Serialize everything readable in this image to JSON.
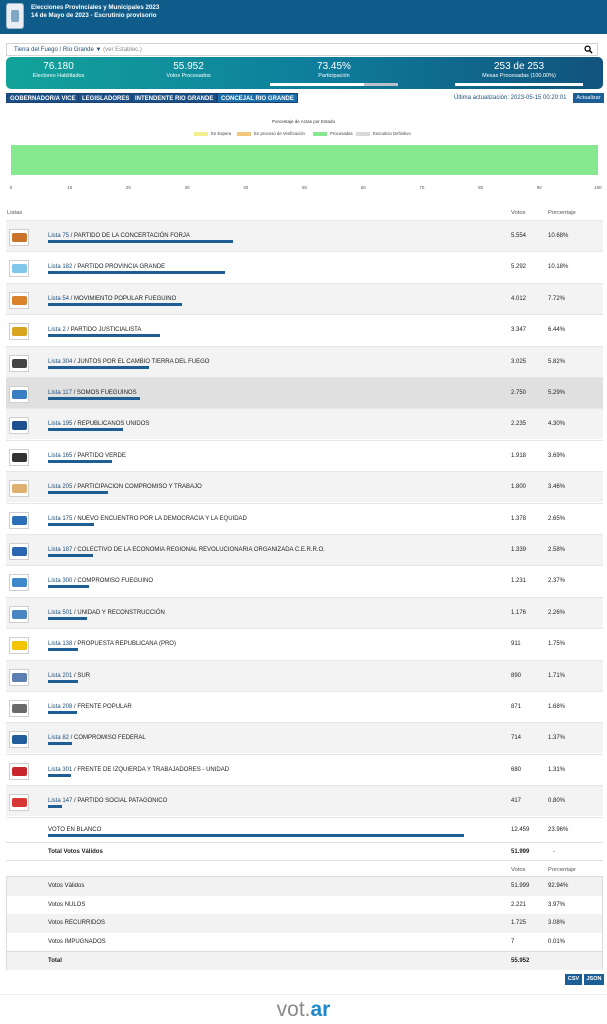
{
  "header": {
    "title": "Elecciones Provinciales y Municipales 2023",
    "subtitle": "14 de Mayo de 2023 - Escrutinio provisorio",
    "logo_icon": "province-shield-icon"
  },
  "location": {
    "province": "Tierra del Fuego",
    "separator": "/",
    "municipality": "Río Grande",
    "dropdown_glyph": "▼",
    "hint": "(ver Establec.)",
    "search_icon": "search-icon"
  },
  "stats": {
    "electores": {
      "value": "76.180",
      "label": "Electores Habilitados"
    },
    "votos": {
      "value": "55.952",
      "label": "Votos Procesados"
    },
    "participacion": {
      "value": "73.45%",
      "label": "Participación",
      "fill": 0.7345
    },
    "mesas": {
      "value": "253 de 253",
      "label": "Mesas Procesadas (100.00%)",
      "fill": 1.0
    }
  },
  "tabs": [
    "GOBERNADOR/A VICE",
    "LEGISLADORES",
    "INTENDENTE RIO GRANDE",
    "CONCEJAL RIO GRANDE"
  ],
  "update": {
    "label": "Última actualización: 2023-05-15 00:20:01",
    "button": "Actualizar"
  },
  "chart_data": {
    "type": "bar",
    "title": "Porcentaje de Actas por Estado",
    "orientation": "horizontal-stacked",
    "series": [
      {
        "name": "En Espera",
        "value": 0,
        "color": "#f4ef8c"
      },
      {
        "name": "En proceso de Verificación",
        "value": 0,
        "color": "#f2c77b"
      },
      {
        "name": "Procesadas",
        "value": 100,
        "color": "#86e98f"
      },
      {
        "name": "Escrutinio Definitivo",
        "value": 0,
        "color": "#d8d8d8"
      }
    ],
    "xlim": [
      0,
      100
    ],
    "xticks": [
      "0",
      "10",
      "20",
      "30",
      "40",
      "50",
      "60",
      "70",
      "80",
      "90",
      "100"
    ]
  },
  "results": {
    "headers": {
      "listas": "Listas",
      "votos": "Votos",
      "porcentaje": "Porcentaje"
    },
    "rows": [
      {
        "lista": "Lista 75",
        "name": "PARTIDO DE LA CONCERTACIÓN FORJA",
        "votes": "5.554",
        "pct": "10.68%",
        "share": 10.68,
        "icon": "forja-logo-icon",
        "color": "#c9742a"
      },
      {
        "lista": "Lista 182",
        "name": "PARTIDO PROVINCIA GRANDE",
        "votes": "5.292",
        "pct": "10.18%",
        "share": 10.18,
        "icon": "provincia-grande-logo-icon",
        "color": "#7fc6e8"
      },
      {
        "lista": "Lista 54",
        "name": "MOVIMIENTO POPULAR FUEGUINO",
        "votes": "4.012",
        "pct": "7.72%",
        "share": 7.72,
        "icon": "mpf-logo-icon",
        "color": "#d9822b"
      },
      {
        "lista": "Lista 2",
        "name": "PARTIDO JUSTICIALISTA",
        "votes": "3.347",
        "pct": "6.44%",
        "share": 6.44,
        "icon": "pj-logo-icon",
        "color": "#d9a520"
      },
      {
        "lista": "Lista 304",
        "name": "JUNTOS POR EL CAMBIO TIERRA DEL FUEGO",
        "votes": "3.025",
        "pct": "5.82%",
        "share": 5.82,
        "icon": "juntos-por-el-cambio-logo-icon",
        "color": "#444444"
      },
      {
        "lista": "Lista 117",
        "name": "SOMOS FUEGUINOS",
        "votes": "2.750",
        "pct": "5.29%",
        "share": 5.29,
        "icon": "somos-fueguinos-logo-icon",
        "color": "#3a7ec2",
        "highlight": true
      },
      {
        "lista": "Lista 195",
        "name": "REPUBLICANOS UNIDOS",
        "votes": "2.235",
        "pct": "4.30%",
        "share": 4.3,
        "icon": "republicanos-unidos-logo-icon",
        "color": "#1e4f8f"
      },
      {
        "lista": "Lista 165",
        "name": "PARTIDO VERDE",
        "votes": "1.918",
        "pct": "3.69%",
        "share": 3.69,
        "icon": "partido-verde-logo-icon",
        "color": "#333333"
      },
      {
        "lista": "Lista 205",
        "name": "PARTICIPACION COMPROMISO Y TRABAJO",
        "votes": "1.800",
        "pct": "3.46%",
        "share": 3.46,
        "icon": "pcyt-logo-icon",
        "color": "#e0b070"
      },
      {
        "lista": "Lista 175",
        "name": "NUEVO ENCUENTRO POR LA DEMOCRACIA Y LA EQUIDAD",
        "votes": "1.378",
        "pct": "2.65%",
        "share": 2.65,
        "icon": "nuevo-encuentro-logo-icon",
        "color": "#2a6fb5"
      },
      {
        "lista": "Lista 187",
        "name": "COLECTIVO DE LA ECONOMIA REGIONAL REVOLUCIONARIA ORGANIZADA C.E.R.R.O.",
        "votes": "1.339",
        "pct": "2.58%",
        "share": 2.58,
        "icon": "cerro-logo-icon",
        "color": "#2b66b0"
      },
      {
        "lista": "Lista 300",
        "name": "COMPROMISO FUEGUINO",
        "votes": "1.231",
        "pct": "2.37%",
        "share": 2.37,
        "icon": "compromiso-fueguino-logo-icon",
        "color": "#3d89c9"
      },
      {
        "lista": "Lista 501",
        "name": "UNIDAD Y RECONSTRUCCIÓN",
        "votes": "1.176",
        "pct": "2.26%",
        "share": 2.26,
        "icon": "unidad-reconstruccion-logo-icon",
        "color": "#4a86c0"
      },
      {
        "lista": "Lista 138",
        "name": "PROPUESTA REPUBLICANA (PRO)",
        "votes": "911",
        "pct": "1.75%",
        "share": 1.75,
        "icon": "pro-logo-icon",
        "color": "#f2c400"
      },
      {
        "lista": "Lista 201",
        "name": "SUR",
        "votes": "890",
        "pct": "1.71%",
        "share": 1.71,
        "icon": "sur-logo-icon",
        "color": "#5a7fb0"
      },
      {
        "lista": "Lista 208",
        "name": "FRENTE POPULAR",
        "votes": "871",
        "pct": "1.68%",
        "share": 1.68,
        "icon": "frente-popular-logo-icon",
        "color": "#6a6a6a"
      },
      {
        "lista": "Lista 82",
        "name": "COMPROMISO FEDERAL",
        "votes": "714",
        "pct": "1.37%",
        "share": 1.37,
        "icon": "compromiso-federal-logo-icon",
        "color": "#1f5e9a"
      },
      {
        "lista": "Lista 301",
        "name": "FRENTE DE IZQUIERDA Y TRABAJADORES - UNIDAD",
        "votes": "680",
        "pct": "1.31%",
        "share": 1.31,
        "icon": "fit-logo-icon",
        "color": "#c8282d"
      },
      {
        "lista": "Lista 147",
        "name": "PARTIDO SOCIAL PATAGONICO",
        "votes": "417",
        "pct": "0.80%",
        "share": 0.8,
        "icon": "social-patagonico-logo-icon",
        "color": "#d93636"
      }
    ],
    "blank": {
      "name": "VOTO EN BLANCO",
      "votes": "12.459",
      "pct": "23.96%",
      "share": 23.96
    },
    "total": {
      "label": "Total Votos Válidos",
      "votes": "51.999",
      "pct": "-"
    }
  },
  "summary": {
    "headers": {
      "votos": "Votos",
      "porcentaje": "Porcentaje"
    },
    "rows": [
      {
        "label": "Votos Válidos",
        "votes": "51.999",
        "pct": "92.94%"
      },
      {
        "label": "Votos NULOS",
        "votes": "2.221",
        "pct": "3.97%"
      },
      {
        "label": "Votos RECURRIDOS",
        "votes": "1.725",
        "pct": "3.08%"
      },
      {
        "label": "Votos IMPUGNADOS",
        "votes": "7",
        "pct": "0.01%"
      }
    ],
    "total": {
      "label": "Total",
      "votes": "55.952"
    }
  },
  "downloads": {
    "csv": "CSV",
    "json": "JSON"
  },
  "footer": {
    "logo_main": "vot",
    "logo_dot": ".",
    "logo_ar": "ar"
  }
}
